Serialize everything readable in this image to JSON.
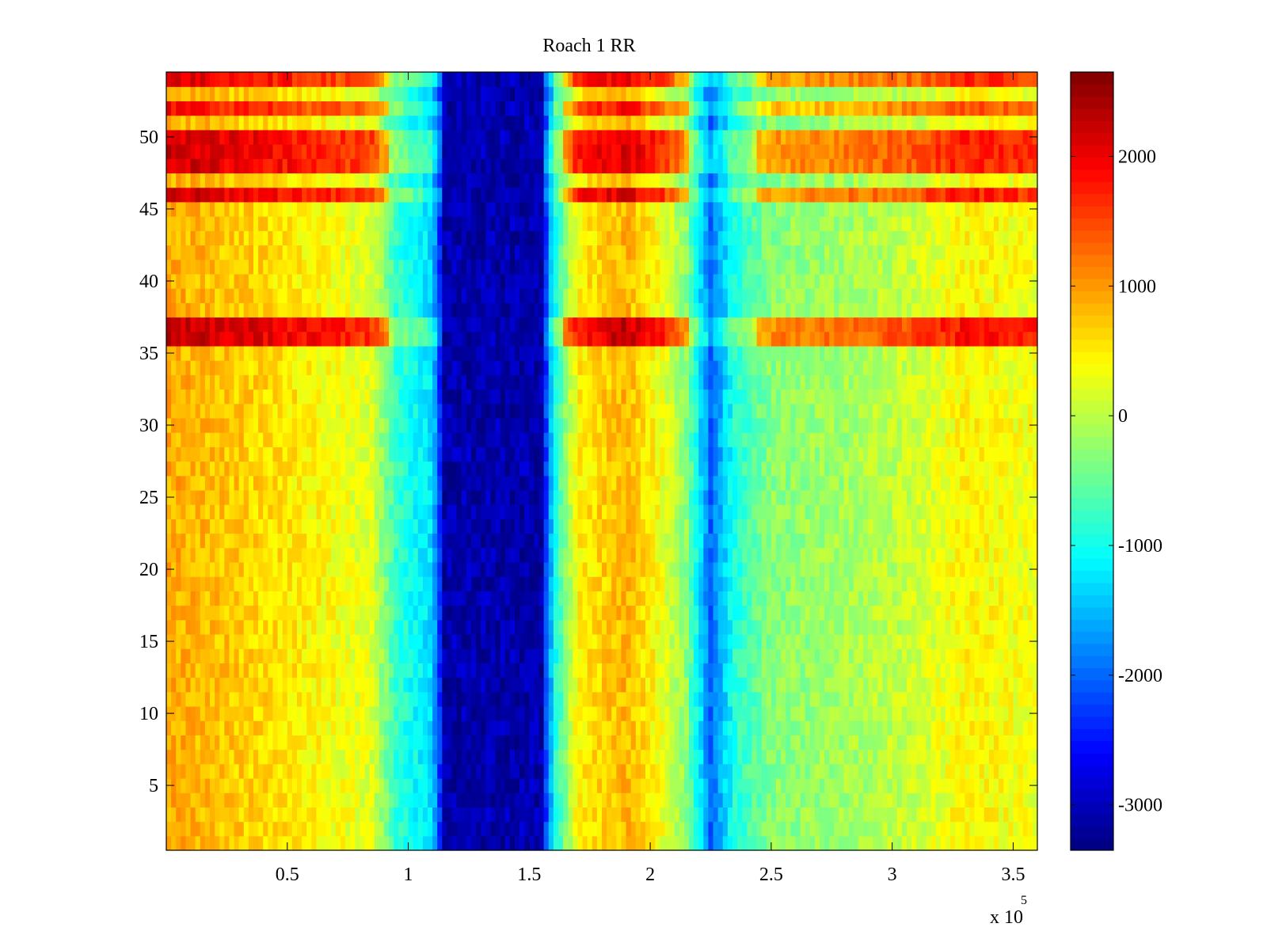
{
  "chart_data": {
    "type": "heatmap",
    "title": "Roach 1 RR",
    "xlabel": "",
    "ylabel": "",
    "x_exponent_label": {
      "base": "x 10",
      "exponent": "5"
    },
    "x_range": [
      1,
      360000
    ],
    "y_range": [
      1,
      54
    ],
    "x_ticks": [
      {
        "value": 0.5,
        "label": "0.5"
      },
      {
        "value": 1,
        "label": "1"
      },
      {
        "value": 1.5,
        "label": "1.5"
      },
      {
        "value": 2,
        "label": "2"
      },
      {
        "value": 2.5,
        "label": "2.5"
      },
      {
        "value": 3,
        "label": "3"
      },
      {
        "value": 3.5,
        "label": "3.5"
      }
    ],
    "y_ticks": [
      {
        "value": 5,
        "label": "5"
      },
      {
        "value": 10,
        "label": "10"
      },
      {
        "value": 15,
        "label": "15"
      },
      {
        "value": 20,
        "label": "20"
      },
      {
        "value": 25,
        "label": "25"
      },
      {
        "value": 30,
        "label": "30"
      },
      {
        "value": 35,
        "label": "35"
      },
      {
        "value": 40,
        "label": "40"
      },
      {
        "value": 45,
        "label": "45"
      },
      {
        "value": 50,
        "label": "50"
      }
    ],
    "colorbar": {
      "colormap": "jet",
      "min": -3350,
      "max": 2650,
      "ticks": [
        {
          "value": 2000,
          "label": "2000"
        },
        {
          "value": 1000,
          "label": "1000"
        },
        {
          "value": 0,
          "label": "0"
        },
        {
          "value": -1000,
          "label": "-1000"
        },
        {
          "value": -2000,
          "label": "-2000"
        },
        {
          "value": -3000,
          "label": "-3000"
        }
      ]
    },
    "column_profile_x1e5": [
      [
        0.0,
        900
      ],
      [
        0.3,
        700
      ],
      [
        0.6,
        450
      ],
      [
        0.85,
        200
      ],
      [
        0.95,
        -800
      ],
      [
        1.1,
        -1300
      ],
      [
        1.15,
        -3000
      ],
      [
        1.55,
        -3000
      ],
      [
        1.6,
        -1100
      ],
      [
        1.7,
        450
      ],
      [
        1.9,
        850
      ],
      [
        2.05,
        300
      ],
      [
        2.15,
        -300
      ],
      [
        2.25,
        -2000
      ],
      [
        2.35,
        -900
      ],
      [
        2.5,
        -300
      ],
      [
        2.8,
        -150
      ],
      [
        3.1,
        100
      ],
      [
        3.3,
        450
      ],
      [
        3.6,
        300
      ]
    ],
    "row_offsets": [
      {
        "rows": [
          36,
          37
        ],
        "offset": 1400
      },
      {
        "rows": [
          46
        ],
        "offset": 1300
      },
      {
        "rows": [
          48,
          49,
          50
        ],
        "offset": 1300
      },
      {
        "rows": [
          52
        ],
        "offset": 1000
      },
      {
        "rows": [
          54
        ],
        "offset": 1200
      }
    ],
    "grid": false
  }
}
